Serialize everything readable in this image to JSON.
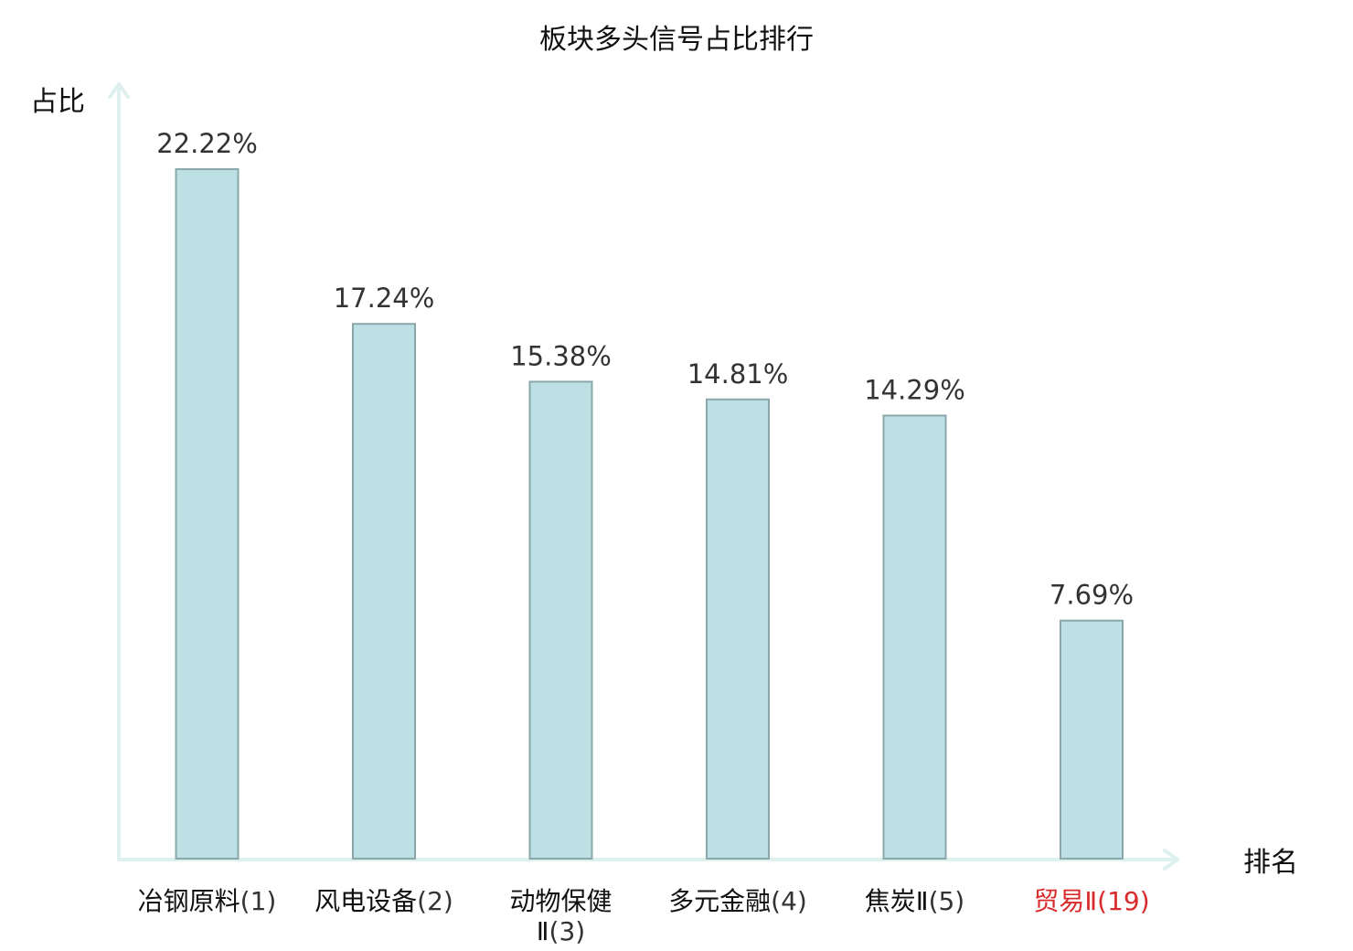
{
  "colors": {
    "bar_fill": "#bce0e3",
    "bar_stroke": "#8aa8ab",
    "axis": "#dff1ef",
    "highlight_label": "#d92b2b"
  },
  "chart_data": {
    "type": "bar",
    "title": "板块多头信号占比排行",
    "xlabel": "排名",
    "ylabel": "占比",
    "categories": [
      "冶钢原料(1)",
      "风电设备(2)",
      "动物保健Ⅱ(3)",
      "多元金融(4)",
      "焦炭Ⅱ(5)",
      "贸易Ⅱ(19)"
    ],
    "category_names": [
      "冶钢原料",
      "风电设备",
      "动物保健Ⅱ",
      "多元金融",
      "焦炭Ⅱ",
      "贸易Ⅱ"
    ],
    "ranks": [
      "(1)",
      "(2)",
      "(3)",
      "(4)",
      "(5)",
      "(19)"
    ],
    "highlighted": [
      false,
      false,
      false,
      false,
      false,
      true
    ],
    "values": [
      22.22,
      17.24,
      15.38,
      14.81,
      14.29,
      7.69
    ],
    "value_labels": [
      "22.22%",
      "17.24%",
      "15.38%",
      "14.81%",
      "14.29%",
      "7.69%"
    ],
    "ylim": [
      0,
      24.7
    ],
    "grid": false,
    "legend": "none"
  }
}
